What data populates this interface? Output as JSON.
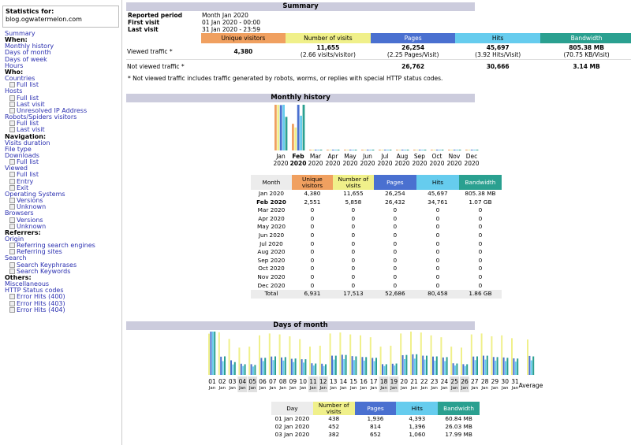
{
  "sidebar": {
    "stats_for_label": "Statistics for:",
    "site": "blog.ogwatermelon.com",
    "menu": [
      {
        "t": "link",
        "label": "Summary"
      },
      {
        "t": "hdr",
        "label": "When:"
      },
      {
        "t": "link",
        "label": "Monthly history"
      },
      {
        "t": "link",
        "label": "Days of month"
      },
      {
        "t": "link",
        "label": "Days of week"
      },
      {
        "t": "link",
        "label": "Hours"
      },
      {
        "t": "hdr",
        "label": "Who:"
      },
      {
        "t": "link",
        "label": "Countries"
      },
      {
        "t": "sub",
        "label": "Full list"
      },
      {
        "t": "link",
        "label": "Hosts"
      },
      {
        "t": "sub",
        "label": "Full list"
      },
      {
        "t": "sub",
        "label": "Last visit"
      },
      {
        "t": "sub",
        "label": "Unresolved IP Address"
      },
      {
        "t": "link",
        "label": "Robots/Spiders visitors"
      },
      {
        "t": "sub",
        "label": "Full list"
      },
      {
        "t": "sub",
        "label": "Last visit"
      },
      {
        "t": "hdr",
        "label": "Navigation:"
      },
      {
        "t": "link",
        "label": "Visits duration"
      },
      {
        "t": "link",
        "label": "File type"
      },
      {
        "t": "link",
        "label": "Downloads"
      },
      {
        "t": "sub",
        "label": "Full list"
      },
      {
        "t": "link",
        "label": "Viewed"
      },
      {
        "t": "sub",
        "label": "Full list"
      },
      {
        "t": "sub",
        "label": "Entry"
      },
      {
        "t": "sub",
        "label": "Exit"
      },
      {
        "t": "link",
        "label": "Operating Systems"
      },
      {
        "t": "sub",
        "label": "Versions"
      },
      {
        "t": "sub",
        "label": "Unknown"
      },
      {
        "t": "link",
        "label": "Browsers"
      },
      {
        "t": "sub",
        "label": "Versions"
      },
      {
        "t": "sub",
        "label": "Unknown"
      },
      {
        "t": "hdr",
        "label": "Referrers:"
      },
      {
        "t": "link",
        "label": "Origin"
      },
      {
        "t": "sub",
        "label": "Referring search engines"
      },
      {
        "t": "sub",
        "label": "Referring sites"
      },
      {
        "t": "link",
        "label": "Search"
      },
      {
        "t": "sub",
        "label": "Search Keyphrases"
      },
      {
        "t": "sub",
        "label": "Search Keywords"
      },
      {
        "t": "hdr",
        "label": "Others:"
      },
      {
        "t": "link",
        "label": "Miscellaneous"
      },
      {
        "t": "link",
        "label": "HTTP Status codes"
      },
      {
        "t": "sub",
        "label": "Error Hits (400)"
      },
      {
        "t": "sub",
        "label": "Error Hits (403)"
      },
      {
        "t": "sub",
        "label": "Error Hits (404)"
      }
    ]
  },
  "summary": {
    "title": "Summary",
    "reported_period_label": "Reported period",
    "reported_period_value": "Month Jan 2020",
    "first_visit_label": "First visit",
    "first_visit_value": "01 Jan 2020 - 00:00",
    "last_visit_label": "Last visit",
    "last_visit_value": "31 Jan 2020 - 23:59",
    "headers": [
      "Unique visitors",
      "Number of visits",
      "Pages",
      "Hits",
      "Bandwidth"
    ],
    "viewed_label": "Viewed traffic *",
    "viewed": [
      "4,380",
      "11,655",
      "26,254",
      "45,697",
      "805.38 MB"
    ],
    "viewed_sub": [
      "",
      "(2.66 visits/visitor)",
      "(2.25 Pages/Visit)",
      "(3.92 Hits/Visit)",
      "(70.75 KB/Visit)"
    ],
    "not_viewed_label": "Not viewed traffic *",
    "not_viewed": [
      "",
      "",
      "26,762",
      "30,666",
      "3.14 MB"
    ],
    "footnote": "* Not viewed traffic includes traffic generated by robots, worms, or replies with special HTTP status codes."
  },
  "monthly": {
    "title": "Monthly history",
    "months": [
      "Jan",
      "Feb",
      "Mar",
      "Apr",
      "May",
      "Jun",
      "Jul",
      "Aug",
      "Sep",
      "Oct",
      "Nov",
      "Dec"
    ],
    "year": "2020",
    "headers": [
      "Month",
      "Unique visitors",
      "Number of visits",
      "Pages",
      "Hits",
      "Bandwidth"
    ],
    "rows": [
      [
        "Jan 2020",
        "4,380",
        "11,655",
        "26,254",
        "45,697",
        "805.38 MB"
      ],
      [
        "Feb 2020",
        "2,551",
        "5,858",
        "26,432",
        "34,761",
        "1.07 GB"
      ],
      [
        "Mar 2020",
        "0",
        "0",
        "0",
        "0",
        "0"
      ],
      [
        "Apr 2020",
        "0",
        "0",
        "0",
        "0",
        "0"
      ],
      [
        "May 2020",
        "0",
        "0",
        "0",
        "0",
        "0"
      ],
      [
        "Jun 2020",
        "0",
        "0",
        "0",
        "0",
        "0"
      ],
      [
        "Jul 2020",
        "0",
        "0",
        "0",
        "0",
        "0"
      ],
      [
        "Aug 2020",
        "0",
        "0",
        "0",
        "0",
        "0"
      ],
      [
        "Sep 2020",
        "0",
        "0",
        "0",
        "0",
        "0"
      ],
      [
        "Oct 2020",
        "0",
        "0",
        "0",
        "0",
        "0"
      ],
      [
        "Nov 2020",
        "0",
        "0",
        "0",
        "0",
        "0"
      ],
      [
        "Dec 2020",
        "0",
        "0",
        "0",
        "0",
        "0"
      ]
    ],
    "total": [
      "Total",
      "6,931",
      "17,513",
      "52,686",
      "80,458",
      "1.86 GB"
    ],
    "chart_values": {
      "unique_visitors": [
        4380,
        2551,
        0,
        0,
        0,
        0,
        0,
        0,
        0,
        0,
        0,
        0
      ],
      "visits": [
        11655,
        5858,
        0,
        0,
        0,
        0,
        0,
        0,
        0,
        0,
        0,
        0
      ],
      "pages": [
        26254,
        26432,
        0,
        0,
        0,
        0,
        0,
        0,
        0,
        0,
        0,
        0
      ],
      "hits": [
        45697,
        34761,
        0,
        0,
        0,
        0,
        0,
        0,
        0,
        0,
        0,
        0
      ],
      "bandwidth_mb": [
        805.38,
        1095.68,
        0,
        0,
        0,
        0,
        0,
        0,
        0,
        0,
        0,
        0
      ]
    }
  },
  "days": {
    "title": "Days of month",
    "labels": [
      "01",
      "02",
      "03",
      "04",
      "05",
      "06",
      "07",
      "08",
      "09",
      "10",
      "11",
      "12",
      "13",
      "14",
      "15",
      "16",
      "17",
      "18",
      "19",
      "20",
      "21",
      "22",
      "23",
      "24",
      "25",
      "26",
      "27",
      "28",
      "29",
      "30",
      "31"
    ],
    "month_label": "Jan",
    "weekend_days": [
      "04",
      "05",
      "11",
      "12",
      "18",
      "19",
      "25",
      "26"
    ],
    "average_label": "Average",
    "headers": [
      "Day",
      "Number of visits",
      "Pages",
      "Hits",
      "Bandwidth"
    ],
    "rows": [
      [
        "01 Jan 2020",
        "438",
        "1,936",
        "4,393",
        "60.84 MB"
      ],
      [
        "02 Jan 2020",
        "452",
        "814",
        "1,396",
        "26.03 MB"
      ],
      [
        "03 Jan 2020",
        "382",
        "652",
        "1,060",
        "17.99 MB"
      ]
    ]
  },
  "colors": {
    "unique_visitors": "#f0a060",
    "visits": "#f0f08a",
    "pages": "#4a70d0",
    "hits": "#66ccee",
    "bandwidth": "#2aa090",
    "section_title_bg": "#ccccdd"
  },
  "chart_data": [
    {
      "type": "bar",
      "categories": [
        "Jan 2020",
        "Feb 2020",
        "Mar 2020",
        "Apr 2020",
        "May 2020",
        "Jun 2020",
        "Jul 2020",
        "Aug 2020",
        "Sep 2020",
        "Oct 2020",
        "Nov 2020",
        "Dec 2020"
      ],
      "series": [
        {
          "name": "Unique visitors",
          "values": [
            4380,
            2551,
            0,
            0,
            0,
            0,
            0,
            0,
            0,
            0,
            0,
            0
          ]
        },
        {
          "name": "Number of visits",
          "values": [
            11655,
            5858,
            0,
            0,
            0,
            0,
            0,
            0,
            0,
            0,
            0,
            0
          ]
        },
        {
          "name": "Pages",
          "values": [
            26254,
            26432,
            0,
            0,
            0,
            0,
            0,
            0,
            0,
            0,
            0,
            0
          ]
        },
        {
          "name": "Hits",
          "values": [
            45697,
            34761,
            0,
            0,
            0,
            0,
            0,
            0,
            0,
            0,
            0,
            0
          ]
        },
        {
          "name": "Bandwidth",
          "values": [
            805.38,
            1095.68,
            0,
            0,
            0,
            0,
            0,
            0,
            0,
            0,
            0,
            0
          ]
        }
      ],
      "title": "Monthly history"
    },
    {
      "type": "bar",
      "categories": [
        "01",
        "02",
        "03",
        "04",
        "05",
        "06",
        "07",
        "08",
        "09",
        "10",
        "11",
        "12",
        "13",
        "14",
        "15",
        "16",
        "17",
        "18",
        "19",
        "20",
        "21",
        "22",
        "23",
        "24",
        "25",
        "26",
        "27",
        "28",
        "29",
        "30",
        "31",
        "Average"
      ],
      "series": [
        {
          "name": "Number of visits",
          "values": [
            438,
            452,
            382,
            290,
            300,
            420,
            440,
            430,
            410,
            380,
            300,
            310,
            440,
            450,
            430,
            420,
            400,
            300,
            310,
            440,
            460,
            450,
            420,
            400,
            300,
            290,
            430,
            440,
            410,
            420,
            390,
            376
          ]
        },
        {
          "name": "Pages",
          "values": [
            1936,
            814,
            652,
            500,
            480,
            760,
            820,
            780,
            720,
            700,
            520,
            500,
            860,
            900,
            840,
            800,
            760,
            480,
            500,
            880,
            920,
            860,
            820,
            780,
            520,
            480,
            820,
            860,
            800,
            780,
            740,
            847
          ]
        },
        {
          "name": "Hits",
          "values": [
            4393,
            1396,
            1060,
            900,
            850,
            1400,
            1500,
            1450,
            1300,
            1250,
            950,
            900,
            1550,
            1600,
            1500,
            1450,
            1400,
            900,
            950,
            1600,
            1650,
            1550,
            1450,
            1400,
            950,
            900,
            1500,
            1550,
            1450,
            1400,
            1350,
            1474
          ]
        },
        {
          "name": "Bandwidth",
          "values": [
            60.84,
            26.03,
            17.99,
            15,
            14,
            24,
            26,
            25,
            23,
            22,
            16,
            15,
            27,
            28,
            26,
            25,
            24,
            15,
            16,
            28,
            29,
            27,
            26,
            25,
            16,
            15,
            26,
            27,
            25,
            24,
            23,
            25.98
          ]
        }
      ],
      "title": "Days of month"
    }
  ]
}
